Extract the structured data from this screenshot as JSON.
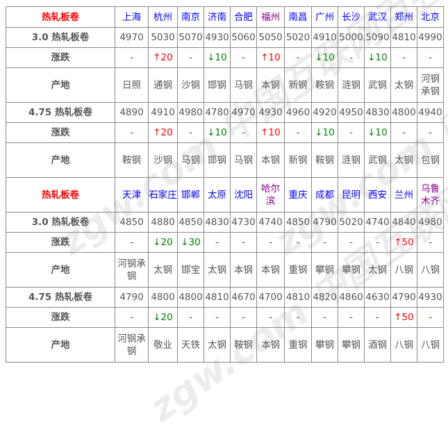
{
  "watermark": "zgw.com 中国互联网百强企业",
  "colors": {
    "header_label": "#ff0000",
    "city": "#0000ff",
    "city_visited": "#800080",
    "up": "#ff0000",
    "down": "#008000"
  },
  "blocks": [
    {
      "header_label": "热轧板卷",
      "cities": [
        "上海",
        "杭州",
        "南京",
        "济南",
        "合肥",
        "福州",
        "南昌",
        "广州",
        "长沙",
        "武汉",
        "郑州",
        "北京"
      ],
      "visited": [
        5
      ],
      "rows": [
        {
          "label": "3.0 热轧板卷",
          "type": "price",
          "values": [
            "4970",
            "5030",
            "5070",
            "4930",
            "5060",
            "5050",
            "5020",
            "4910",
            "5000",
            "5090",
            "4810",
            "4990"
          ]
        },
        {
          "label": "涨跌",
          "type": "change",
          "values": [
            "-",
            "↑20",
            "-",
            "↓10",
            "-",
            "↑10",
            "-",
            "↓10",
            "-",
            "↓10",
            "-",
            "-"
          ]
        },
        {
          "label": "产地",
          "type": "origin",
          "values": [
            "日照",
            "通钢",
            "沙钢",
            "邯钢",
            "马钢",
            "本钢",
            "新钢",
            "鞍钢",
            "涟钢",
            "武钢",
            "太钢",
            "河钢承钢"
          ]
        },
        {
          "label": "4.75 热轧板卷",
          "type": "price",
          "values": [
            "4890",
            "4910",
            "4980",
            "4780",
            "4970",
            "4930",
            "4960",
            "4920",
            "4950",
            "4830",
            "4800",
            "4940"
          ]
        },
        {
          "label": "涨跌",
          "type": "change",
          "values": [
            "-",
            "↑20",
            "-",
            "↓10",
            "-",
            "↑10",
            "-",
            "↓10",
            "-",
            "↓10",
            "-",
            "-"
          ]
        },
        {
          "label": "产地",
          "type": "origin",
          "values": [
            "鞍钢",
            "沙钢",
            "马钢",
            "邯钢",
            "马钢",
            "本钢",
            "新钢",
            "鞍钢",
            "涟钢",
            "武钢",
            "太钢",
            "包钢"
          ]
        }
      ]
    },
    {
      "header_label": "热轧板卷",
      "cities": [
        "天津",
        "石家庄",
        "邯郸",
        "太原",
        "沈阳",
        "哈尔滨",
        "重庆",
        "成都",
        "昆明",
        "西安",
        "兰州",
        "乌鲁木齐"
      ],
      "visited": [
        5,
        11
      ],
      "rows": [
        {
          "label": "3.0 热轧板卷",
          "type": "price",
          "values": [
            "4850",
            "4880",
            "4850",
            "4830",
            "4730",
            "4740",
            "4850",
            "4790",
            "5020",
            "4740",
            "4840",
            "4980"
          ]
        },
        {
          "label": "涨跌",
          "type": "change",
          "values": [
            "-",
            "↓20",
            "↓30",
            "-",
            "-",
            "-",
            "-",
            "-",
            "-",
            "-",
            "↑50",
            "-"
          ]
        },
        {
          "label": "产地",
          "type": "origin",
          "values": [
            "河钢承钢",
            "太钢",
            "邯宝",
            "太钢",
            "本钢",
            "本钢",
            "重钢",
            "攀钢",
            "攀钢",
            "太钢",
            "八钢",
            "八钢"
          ]
        },
        {
          "label": "4.75 热轧板卷",
          "type": "price",
          "values": [
            "4790",
            "4800",
            "4800",
            "4810",
            "4670",
            "4700",
            "4810",
            "4820",
            "4860",
            "4630",
            "4790",
            "4930"
          ]
        },
        {
          "label": "涨跌",
          "type": "change",
          "values": [
            "-",
            "↓20",
            "-",
            "-",
            "-",
            "-",
            "-",
            "-",
            "-",
            "-",
            "↑50",
            "-"
          ]
        },
        {
          "label": "产地",
          "type": "origin",
          "values": [
            "河钢承钢",
            "敬业",
            "天铁",
            "太钢",
            "鞍钢",
            "本钢",
            "重钢",
            "攀钢",
            "攀钢",
            "酒钢",
            "八钢",
            "八钢"
          ]
        }
      ]
    }
  ]
}
